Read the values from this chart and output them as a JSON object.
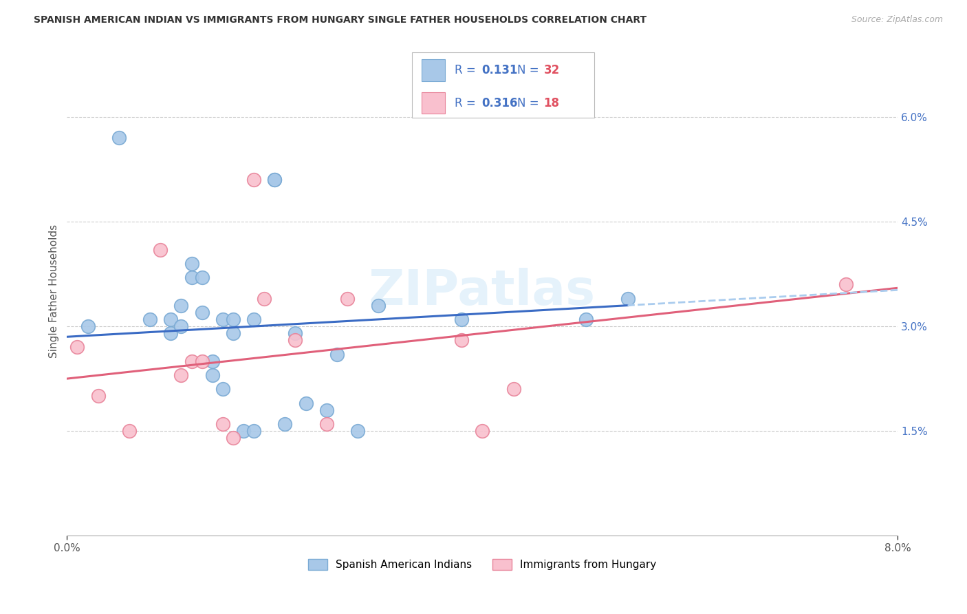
{
  "title": "SPANISH AMERICAN INDIAN VS IMMIGRANTS FROM HUNGARY SINGLE FATHER HOUSEHOLDS CORRELATION CHART",
  "source": "Source: ZipAtlas.com",
  "ylabel": "Single Father Households",
  "xlim": [
    0.0,
    0.08
  ],
  "ylim": [
    0.0,
    0.07
  ],
  "x_tick_labels_show": [
    "0.0%",
    "8.0%"
  ],
  "x_tick_vals_show": [
    0.0,
    0.08
  ],
  "y_ticks_right": [
    0.015,
    0.03,
    0.045,
    0.06
  ],
  "y_tick_labels_right": [
    "1.5%",
    "3.0%",
    "4.5%",
    "6.0%"
  ],
  "background_color": "#ffffff",
  "grid_color": "#cccccc",
  "watermark": "ZIPatlas",
  "series": [
    {
      "name": "Spanish American Indians",
      "color": "#a8c8e8",
      "border_color": "#7aaad4",
      "R": 0.131,
      "N": 32,
      "x": [
        0.002,
        0.005,
        0.008,
        0.01,
        0.01,
        0.011,
        0.011,
        0.012,
        0.012,
        0.013,
        0.013,
        0.014,
        0.014,
        0.015,
        0.015,
        0.016,
        0.016,
        0.017,
        0.018,
        0.018,
        0.02,
        0.02,
        0.021,
        0.022,
        0.023,
        0.025,
        0.026,
        0.028,
        0.03,
        0.038,
        0.05,
        0.054
      ],
      "y": [
        0.03,
        0.057,
        0.031,
        0.029,
        0.031,
        0.03,
        0.033,
        0.037,
        0.039,
        0.032,
        0.037,
        0.023,
        0.025,
        0.021,
        0.031,
        0.029,
        0.031,
        0.015,
        0.015,
        0.031,
        0.051,
        0.051,
        0.016,
        0.029,
        0.019,
        0.018,
        0.026,
        0.015,
        0.033,
        0.031,
        0.031,
        0.034
      ]
    },
    {
      "name": "Immigrants from Hungary",
      "color": "#f9c0ce",
      "border_color": "#e8849a",
      "R": 0.316,
      "N": 18,
      "x": [
        0.001,
        0.003,
        0.006,
        0.009,
        0.011,
        0.012,
        0.013,
        0.015,
        0.016,
        0.018,
        0.019,
        0.022,
        0.025,
        0.027,
        0.038,
        0.04,
        0.043,
        0.075
      ],
      "y": [
        0.027,
        0.02,
        0.015,
        0.041,
        0.023,
        0.025,
        0.025,
        0.016,
        0.014,
        0.051,
        0.034,
        0.028,
        0.016,
        0.034,
        0.028,
        0.015,
        0.021,
        0.036
      ]
    }
  ],
  "trendline_blue": {
    "x_start": 0.0,
    "x_end": 0.054,
    "y_start": 0.0285,
    "y_end": 0.033,
    "color": "#3a6bc4",
    "linestyle": "solid",
    "linewidth": 2.2
  },
  "trendline_blue_dashed": {
    "x_start": 0.054,
    "x_end": 0.08,
    "y_start": 0.033,
    "y_end": 0.0352,
    "color": "#aaccee",
    "linestyle": "dashed",
    "linewidth": 2.0
  },
  "trendline_pink": {
    "x_start": 0.0,
    "x_end": 0.08,
    "y_start": 0.0225,
    "y_end": 0.0355,
    "color": "#e0607a",
    "linestyle": "solid",
    "linewidth": 2.2
  },
  "legend_items": [
    {
      "color": "#a8c8e8",
      "border": "#7aaad4",
      "R_val": "0.131",
      "N_val": "32"
    },
    {
      "color": "#f9c0ce",
      "border": "#e8849a",
      "R_val": "0.316",
      "N_val": "18"
    }
  ],
  "legend_text_color": "#4472c4",
  "legend_R_label_color": "#4472c4",
  "legend_N_val_color": "#e05060"
}
